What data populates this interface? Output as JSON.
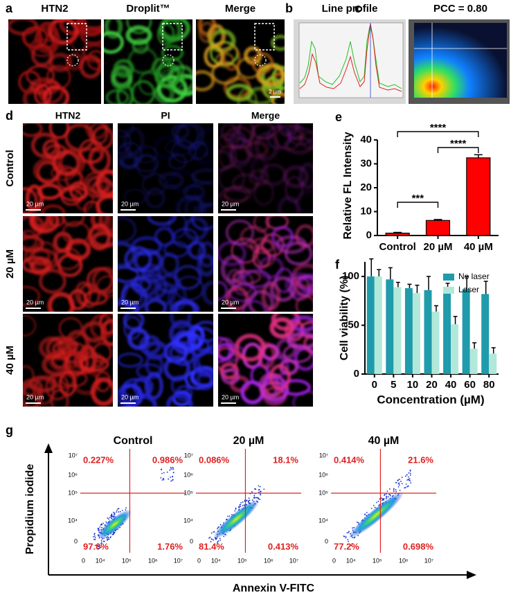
{
  "panel_letters": [
    "a",
    "b",
    "c",
    "d",
    "e",
    "f",
    "g"
  ],
  "panel_a": {
    "titles": [
      "HTN2",
      "Droplit™",
      "Merge"
    ],
    "scale_bar": "2 µm"
  },
  "panel_b": {
    "title": "Line profile"
  },
  "panel_c": {
    "title": "PCC = 0.80"
  },
  "panel_d": {
    "columns": [
      "HTN2",
      "PI",
      "Merge"
    ],
    "rows": [
      "Control",
      "20 µM",
      "40 µM"
    ],
    "scale_bar": "20 µm"
  },
  "chart_data": [
    {
      "type": "bar",
      "categories": [
        "Control",
        "20 µM",
        "40 µM"
      ],
      "values": [
        1,
        6.3,
        32.5
      ],
      "errors": [
        0.3,
        0.4,
        1.3
      ],
      "color": "#ff0000",
      "ylabel": "Relative FL Intensity",
      "ylim": [
        0,
        40
      ],
      "yticks": [
        0,
        10,
        20,
        30,
        40
      ],
      "annotations": [
        "****",
        "****",
        "***"
      ]
    },
    {
      "type": "grouped_bar",
      "categories": [
        "0",
        "5",
        "10",
        "20",
        "40",
        "60",
        "80"
      ],
      "series": [
        {
          "name": "No laser",
          "color": "#1f9bab",
          "values": [
            100,
            97,
            88,
            86,
            84,
            87,
            82
          ],
          "errors": [
            18,
            12,
            4,
            14,
            9,
            13,
            13
          ]
        },
        {
          "name": "Laser",
          "color": "#b2e8d9",
          "values": [
            100,
            89,
            83,
            64,
            51,
            26,
            21
          ],
          "errors": [
            7,
            5,
            8,
            6,
            8,
            6,
            6
          ]
        }
      ],
      "xlabel": "Concentration (µM)",
      "ylabel": "Cell viability (%)",
      "ylim": [
        0,
        115
      ],
      "yticks": [
        0,
        50,
        100
      ],
      "legend": "upper right"
    }
  ],
  "panel_g": {
    "panels": [
      {
        "title": "Control",
        "quadrants": [
          "0.227%",
          "0.986%",
          "97.0%",
          "1.76%"
        ]
      },
      {
        "title": "20 µM",
        "quadrants": [
          "0.086%",
          "18.1%",
          "81.4%",
          "0.413%"
        ]
      },
      {
        "title": "40 µM",
        "quadrants": [
          "0.414%",
          "21.6%",
          "77.2%",
          "0.698%"
        ]
      }
    ],
    "y_ticks": [
      "10⁷",
      "10⁶",
      "10⁵",
      "10⁴",
      "0"
    ],
    "x_ticks": [
      "0",
      "10⁴",
      "10⁵",
      "10⁶",
      "10⁷"
    ],
    "y_label": "Propidium iodide",
    "x_label": "Annexin V-FITC"
  }
}
